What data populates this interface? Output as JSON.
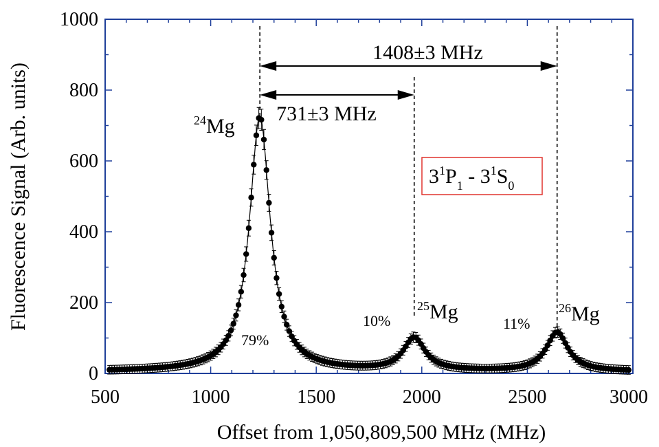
{
  "chart_data": {
    "type": "scatter",
    "title": "",
    "xlabel": "Offset from 1,050,809,500 MHz (MHz)",
    "ylabel": "Fluorescence Signal (Arb. units)",
    "xlim": [
      500,
      3000
    ],
    "ylim": [
      0,
      1000
    ],
    "xticks": [
      "500",
      "1000",
      "1500",
      "2000",
      "2500",
      "3000"
    ],
    "yticks": [
      "0",
      "200",
      "400",
      "600",
      "800",
      "1000"
    ],
    "grid": false,
    "frame_color": "#1f3f9a",
    "series": [
      {
        "marker": "filled-circle-with-error-bars",
        "color": "#000000",
        "peaks": [
          {
            "center": 1233,
            "height": 720,
            "hwhm": 60
          },
          {
            "center": 1964,
            "height": 92,
            "hwhm": 62
          },
          {
            "center": 2641,
            "height": 110,
            "hwhm": 62
          }
        ],
        "baseline": 5,
        "x_start": 520,
        "x_end": 2990,
        "step": 12,
        "error": 12
      }
    ],
    "fit_line": {
      "color": "#000000"
    },
    "peak_labels": [
      {
        "mass": "24",
        "element": "Mg",
        "x": 1233,
        "percent": "79%"
      },
      {
        "mass": "25",
        "element": "Mg",
        "x": 1964,
        "percent": "10%"
      },
      {
        "mass": "26",
        "element": "Mg",
        "x": 2641,
        "percent": "11%"
      }
    ],
    "spacings": [
      {
        "label": "1408±3 MHz",
        "from": 1233,
        "to": 2641
      },
      {
        "label": "731±3 MHz",
        "from": 1233,
        "to": 1964
      }
    ],
    "transition_box": {
      "upper_lead": "3",
      "upper_sup": "1",
      "upper_letter": "P",
      "upper_sub": "1",
      "separator": " - ",
      "lower_lead": "3",
      "lower_sup": "1",
      "lower_letter": "S",
      "lower_sub": "0",
      "border_color": "#e0342e"
    }
  }
}
